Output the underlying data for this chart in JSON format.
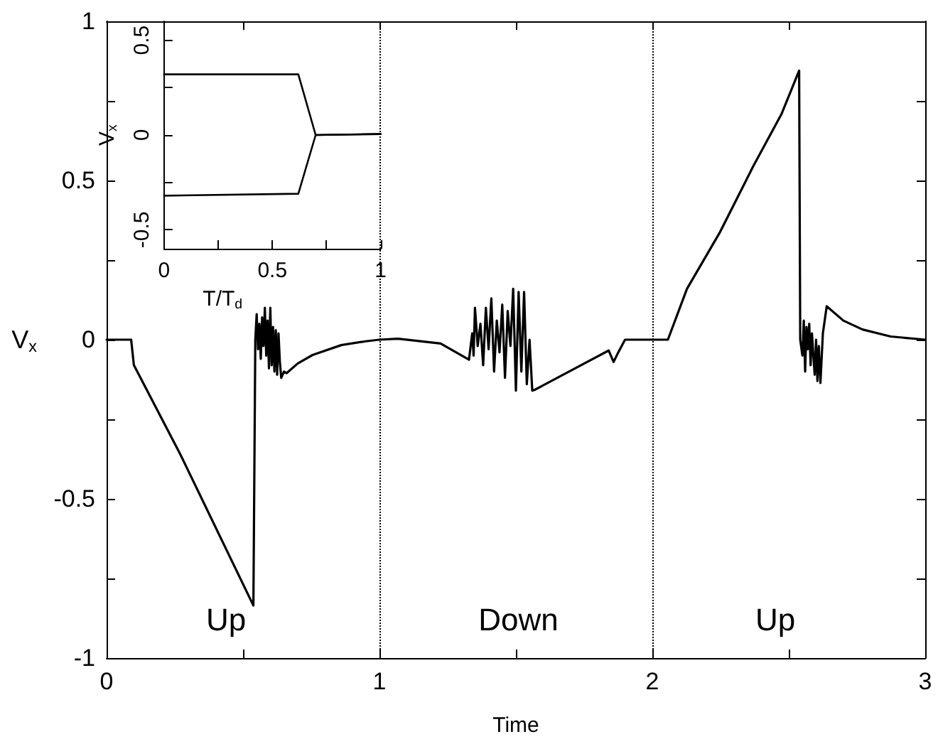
{
  "chart_data": [
    {
      "type": "line",
      "xlabel": "Time",
      "ylabel": "V$_{x}$",
      "xlim": [
        0,
        3
      ],
      "ylim": [
        -1,
        1
      ],
      "xticks": [
        0,
        {
          "value": 0.5,
          "label": null
        },
        1,
        {
          "value": 1.5,
          "label": null
        },
        2,
        {
          "value": 2.5,
          "label": null
        },
        3
      ],
      "yticks": [
        -1,
        {
          "value": -0.75,
          "label": null
        },
        -0.5,
        {
          "value": -0.25,
          "label": null
        },
        0,
        {
          "value": 0.25,
          "label": null
        },
        0.5,
        {
          "value": 0.75,
          "label": null
        },
        1
      ],
      "marker": "none",
      "line_style": "solid",
      "ref_lines": [
        {
          "axis": "x",
          "value": 1,
          "color": "#000000",
          "line_style": "dotted"
        },
        {
          "axis": "x",
          "value": 2,
          "color": "#000000",
          "line_style": "dotted"
        }
      ],
      "annotations": [
        "Up",
        "Down",
        "Up"
      ],
      "series": [
        {
          "color": "#000000",
          "x": [
            0,
            0.09,
            0.1,
            0.27,
            0.538,
            0.545,
            0.55,
            0.555,
            0.56,
            0.565,
            0.57,
            0.575,
            0.58,
            0.585,
            0.59,
            0.595,
            0.6,
            0.605,
            0.61,
            0.615,
            0.62,
            0.625,
            0.63,
            0.635,
            0.64,
            0.65,
            0.66,
            0.7,
            0.755,
            0.86,
            0.95,
            1.0,
            1.068,
            1.224,
            1.328,
            1.34,
            1.345,
            1.35,
            1.36,
            1.37,
            1.38,
            1.39,
            1.4,
            1.41,
            1.42,
            1.43,
            1.44,
            1.45,
            1.46,
            1.47,
            1.48,
            1.49,
            1.5,
            1.51,
            1.52,
            1.53,
            1.54,
            1.55,
            1.56,
            1.568,
            1.84,
            1.858,
            1.875,
            1.9,
            2.057,
            2.127,
            2.248,
            2.37,
            2.474,
            2.538,
            2.542,
            2.55,
            2.555,
            2.56,
            2.565,
            2.57,
            2.575,
            2.58,
            2.585,
            2.59,
            2.595,
            2.6,
            2.605,
            2.61,
            2.616,
            2.625,
            2.639,
            2.7,
            2.77,
            2.873,
            3.0
          ],
          "values": [
            0,
            0,
            -0.08,
            -0.36,
            -0.835,
            0,
            0.08,
            -0.03,
            0.05,
            -0.06,
            0.07,
            -0.02,
            0.1,
            -0.05,
            0.06,
            -0.09,
            0.1,
            -0.08,
            0.04,
            -0.1,
            0.03,
            -0.11,
            0.02,
            -0.07,
            -0.12,
            -0.1,
            -0.105,
            -0.075,
            -0.048,
            -0.017,
            -0.005,
            0,
            0.003,
            -0.012,
            -0.063,
            0.02,
            -0.05,
            0.1,
            -0.02,
            0.05,
            -0.08,
            0.1,
            -0.03,
            0.13,
            -0.1,
            0.06,
            -0.04,
            0.11,
            -0.12,
            0.09,
            -0.02,
            0.16,
            -0.16,
            0.15,
            -0.1,
            0.15,
            -0.14,
            0,
            -0.16,
            -0.158,
            -0.034,
            -0.07,
            -0.04,
            0,
            0,
            0.16,
            0.338,
            0.545,
            0.71,
            0.845,
            0,
            -0.05,
            0.06,
            -0.1,
            0.04,
            -0.03,
            0.05,
            -0.08,
            0.02,
            -0.05,
            -0.11,
            0,
            -0.13,
            -0.02,
            -0.136,
            0.02,
            0.105,
            0.06,
            0.032,
            0.01,
            0
          ]
        }
      ]
    },
    {
      "type": "line",
      "xlabel": "T/T$_{d}$",
      "ylabel": "V$_{x}$",
      "xlim": [
        0,
        1
      ],
      "ylim": [
        -0.6,
        0.6
      ],
      "xticks": [
        0,
        {
          "value": 0.25,
          "label": null
        },
        0.5,
        {
          "value": 0.75,
          "label": null
        },
        1
      ],
      "yticks": [
        -0.5,
        {
          "value": -0.25,
          "label": null
        },
        0,
        {
          "value": 0.25,
          "label": null
        },
        0.5
      ],
      "marker": "none",
      "line_style": "solid",
      "series": [
        {
          "color": "#000000",
          "x": [
            0,
            0.62,
            0.7,
            1
          ],
          "values": [
            0.32,
            0.32,
            0,
            0.005
          ]
        },
        {
          "color": "#000000",
          "x": [
            0,
            0.62,
            0.7,
            1
          ],
          "values": [
            -0.32,
            -0.31,
            0,
            0.005
          ]
        }
      ]
    }
  ]
}
